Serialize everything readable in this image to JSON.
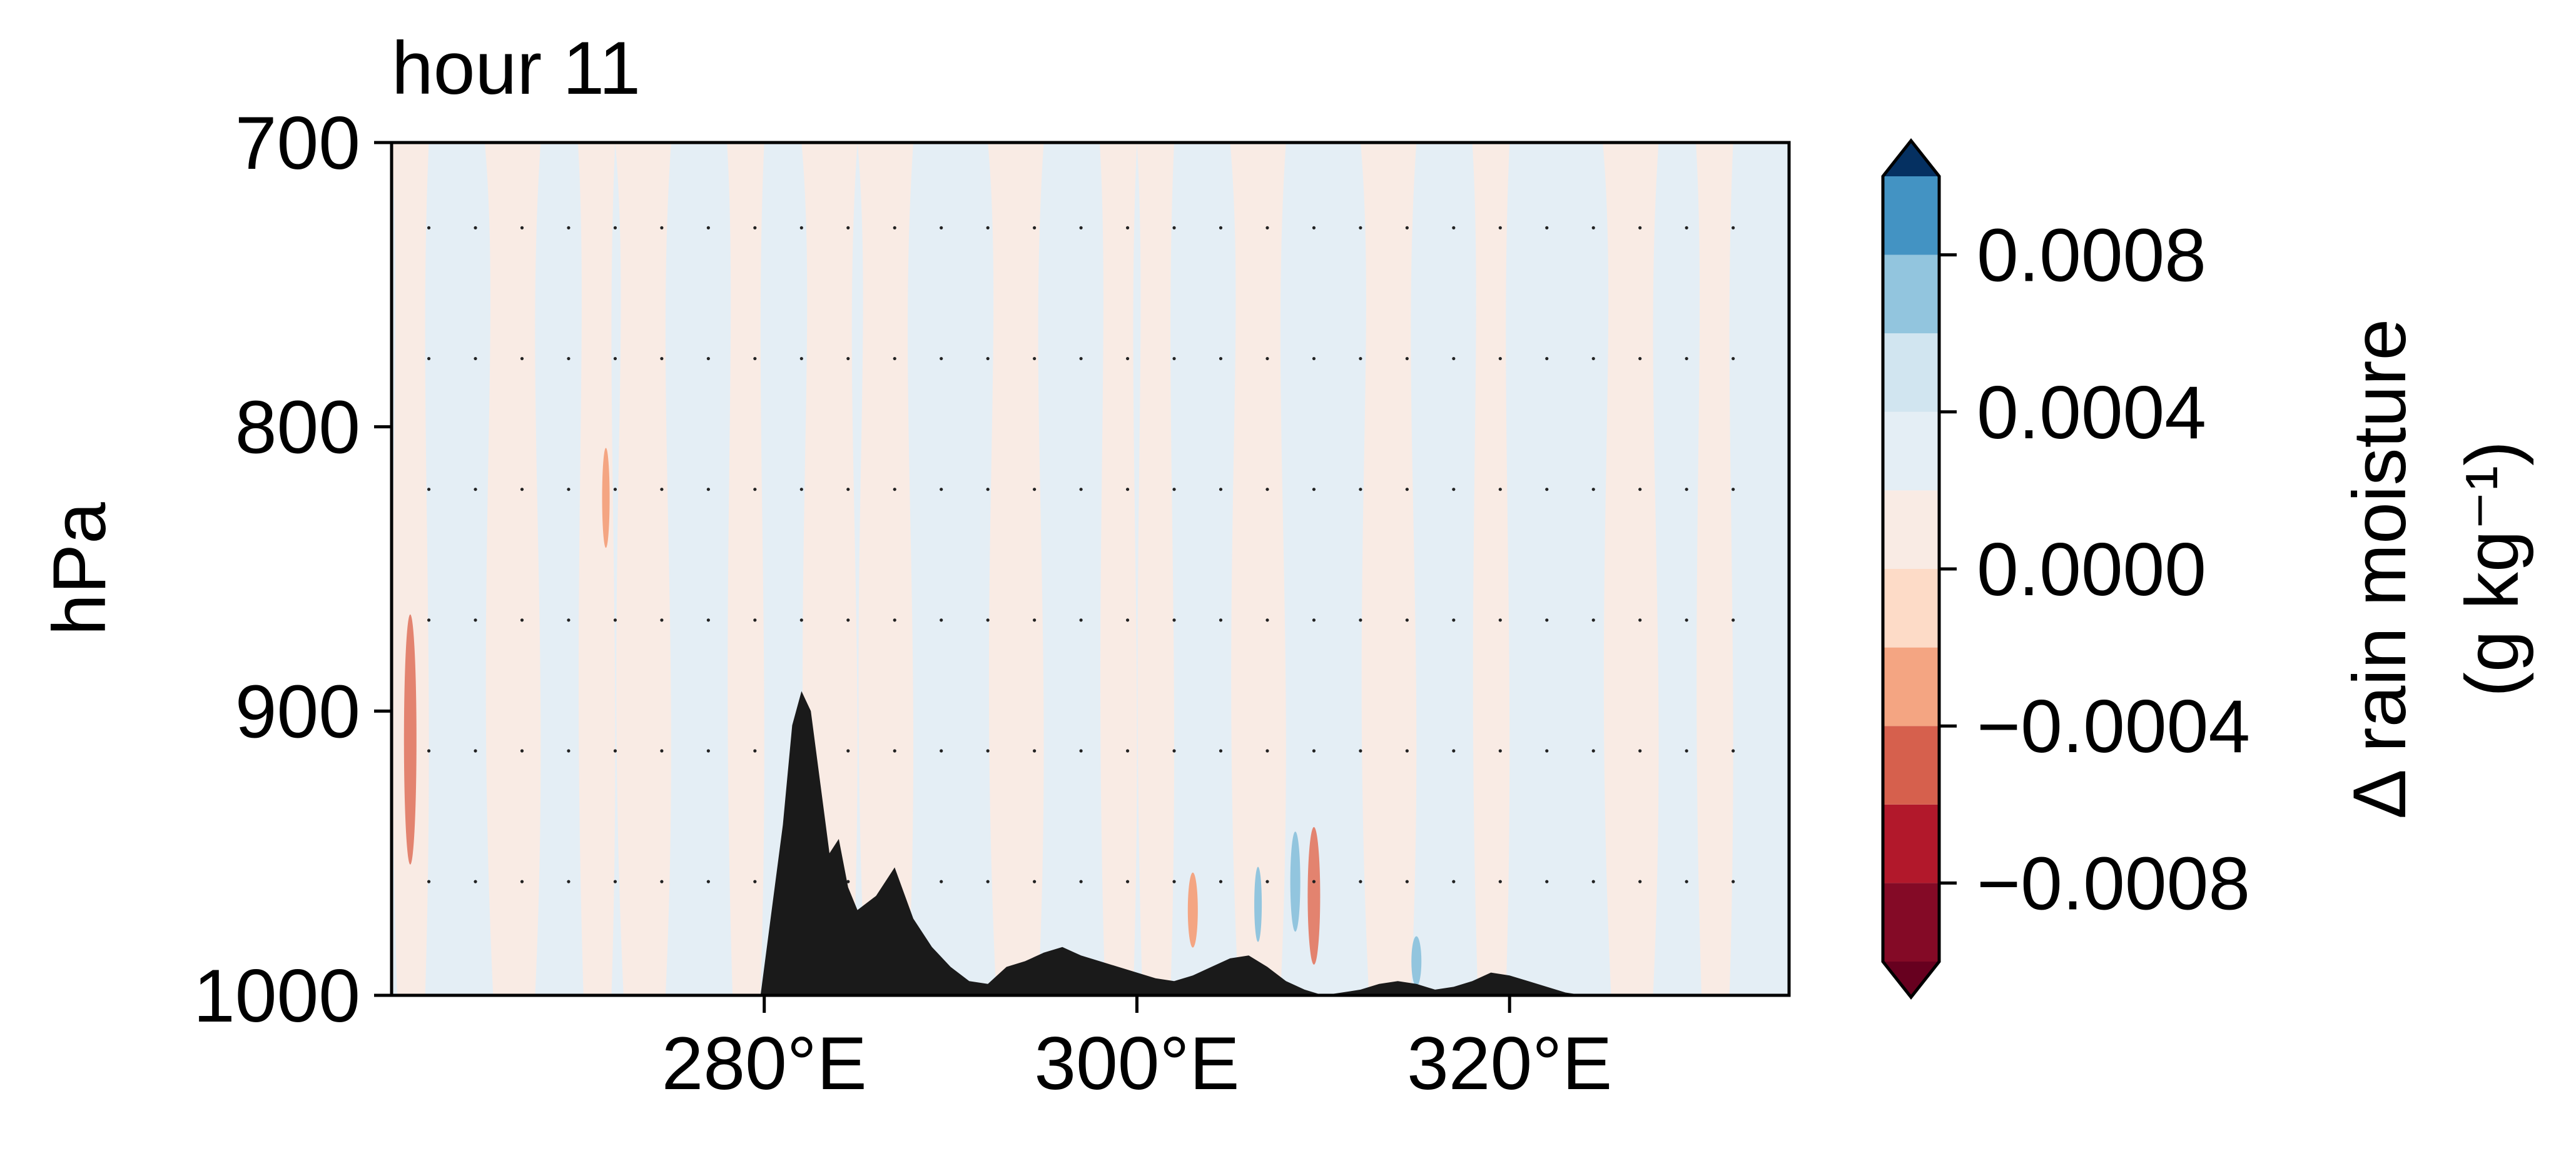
{
  "chart_data": {
    "type": "heatmap",
    "title": "hour 11",
    "xlabel": "",
    "ylabel": "hPa",
    "xlim": [
      260,
      335
    ],
    "ylim": [
      1000,
      700
    ],
    "x_ticks": [
      280,
      300,
      320
    ],
    "x_tick_labels": [
      "280°E",
      "300°E",
      "320°E"
    ],
    "y_ticks": [
      700,
      800,
      900,
      1000
    ],
    "y_tick_labels": [
      "700",
      "800",
      "900",
      "1000"
    ],
    "grid": false,
    "field_description_x_columns": [
      260,
      262,
      265,
      268,
      270,
      272,
      275,
      278,
      280,
      282,
      285,
      288,
      290,
      292,
      295,
      298,
      300,
      302,
      305,
      308,
      310,
      312,
      315,
      318,
      320,
      322,
      325,
      328,
      330,
      332,
      335
    ],
    "field_sign_by_column": [
      -1,
      1,
      -1,
      1,
      -1,
      -1,
      1,
      -1,
      1,
      -1,
      -1,
      1,
      1,
      -1,
      1,
      -1,
      -1,
      1,
      -1,
      1,
      1,
      -1,
      1,
      -1,
      1,
      1,
      -1,
      1,
      -1,
      1,
      -1
    ],
    "terrain_profile": {
      "x": [
        279.8,
        280.2,
        281,
        281.5,
        282,
        282.5,
        283,
        283.5,
        284,
        284.5,
        285,
        286,
        287,
        288,
        289,
        290,
        291,
        292,
        293,
        294,
        295,
        296,
        297,
        298,
        299,
        300,
        301,
        302,
        303,
        304,
        305,
        306,
        307,
        308,
        309,
        310,
        311,
        312,
        313,
        314,
        315,
        316,
        317,
        318,
        319,
        320,
        321,
        322,
        323,
        324
      ],
      "pressure": [
        1000,
        980,
        940,
        905,
        893,
        900,
        925,
        950,
        945,
        962,
        970,
        965,
        955,
        973,
        983,
        990,
        995,
        996,
        990,
        988,
        985,
        983,
        986,
        988,
        990,
        992,
        994,
        995,
        993,
        990,
        987,
        986,
        990,
        995,
        998,
        1000,
        999,
        998,
        996,
        995,
        996,
        998,
        997,
        995,
        992,
        993,
        995,
        997,
        999,
        1000
      ]
    },
    "colorbar": {
      "label": "Δ rain moisture",
      "units_label": "(g kg⁻¹)",
      "levels": [
        -0.0012,
        -0.001,
        -0.0008,
        -0.0006,
        -0.0004,
        -0.0002,
        0.0,
        0.0002,
        0.0004,
        0.0006,
        0.0008,
        0.001,
        0.0012
      ],
      "tick_values": [
        -0.0008,
        -0.0004,
        0.0,
        0.0004,
        0.0008
      ],
      "tick_labels": [
        "−0.0008",
        "−0.0004",
        "0.0000",
        "0.0004",
        "0.0008"
      ],
      "extend": "both",
      "colors_low_to_high": [
        "#67001f",
        "#840a26",
        "#b2182b",
        "#d6604d",
        "#f4a582",
        "#fddbc7",
        "#f9ebe4",
        "#e4eef5",
        "#d1e5f0",
        "#92c5de",
        "#4393c3",
        "#2166ac",
        "#053061"
      ]
    },
    "terrain_color": "#1a1a1a"
  }
}
